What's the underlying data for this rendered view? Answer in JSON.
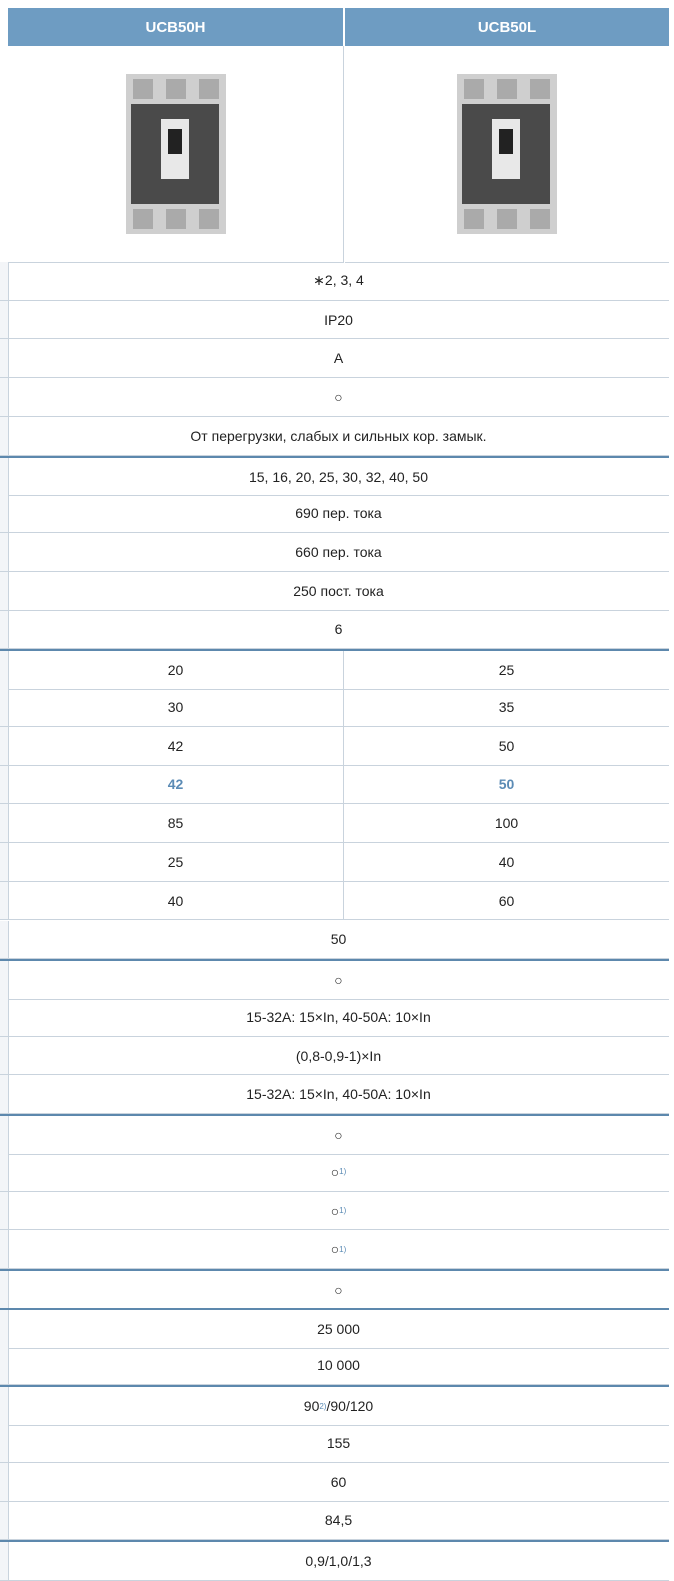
{
  "header": {
    "columns": [
      "UCB50H",
      "UCB50L"
    ]
  },
  "rows": [
    {
      "cells": [
        "∗2, 3, 4"
      ]
    },
    {
      "cells": [
        "IP20"
      ]
    },
    {
      "cells": [
        "A"
      ]
    },
    {
      "cells": [
        "○"
      ]
    },
    {
      "cells": [
        "От перегрузки, слабых и сильных кор. замык."
      ]
    },
    {
      "section_start": true,
      "cells": [
        "15, 16, 20, 25, 30, 32, 40, 50"
      ]
    },
    {
      "cells": [
        "690 пер. тока"
      ]
    },
    {
      "cells": [
        "660 пер. тока"
      ]
    },
    {
      "cells": [
        "250 пост. тока"
      ]
    },
    {
      "cells": [
        "6"
      ]
    },
    {
      "section_start": true,
      "cells": [
        "20",
        "25"
      ]
    },
    {
      "cells": [
        "30",
        "35"
      ]
    },
    {
      "cells": [
        "42",
        "50"
      ]
    },
    {
      "highlight": true,
      "cells": [
        "42",
        "50"
      ]
    },
    {
      "cells": [
        "85",
        "100"
      ]
    },
    {
      "cells": [
        "25",
        "40"
      ]
    },
    {
      "cells": [
        "40",
        "60"
      ]
    },
    {
      "cells": [
        "50"
      ]
    },
    {
      "section_start": true,
      "cells": [
        "○"
      ]
    },
    {
      "cells": [
        "15-32A: 15×In, 40-50A: 10×In"
      ]
    },
    {
      "cells": [
        "(0,8-0,9-1)×In"
      ]
    },
    {
      "cells": [
        "15-32A: 15×In, 40-50A: 10×In"
      ]
    },
    {
      "section_start": true,
      "cells": [
        "○"
      ]
    },
    {
      "cells": [
        {
          "text": "○",
          "sup": "1)"
        }
      ]
    },
    {
      "cells": [
        {
          "text": "○",
          "sup": "1)"
        }
      ]
    },
    {
      "cells": [
        {
          "text": "○",
          "sup": "1)"
        }
      ]
    },
    {
      "section_start": true,
      "cells": [
        "○"
      ]
    },
    {
      "section_start": true,
      "cells": [
        "25 000"
      ]
    },
    {
      "cells": [
        "10 000"
      ]
    },
    {
      "section_start": true,
      "cells": [
        {
          "text": "90",
          "sup": "2)",
          "after": "/90/120"
        }
      ]
    },
    {
      "cells": [
        "155"
      ]
    },
    {
      "cells": [
        "60"
      ]
    },
    {
      "cells": [
        "84,5"
      ]
    },
    {
      "section_start": true,
      "cells": [
        "0,9/1,0/1,3"
      ]
    }
  ]
}
